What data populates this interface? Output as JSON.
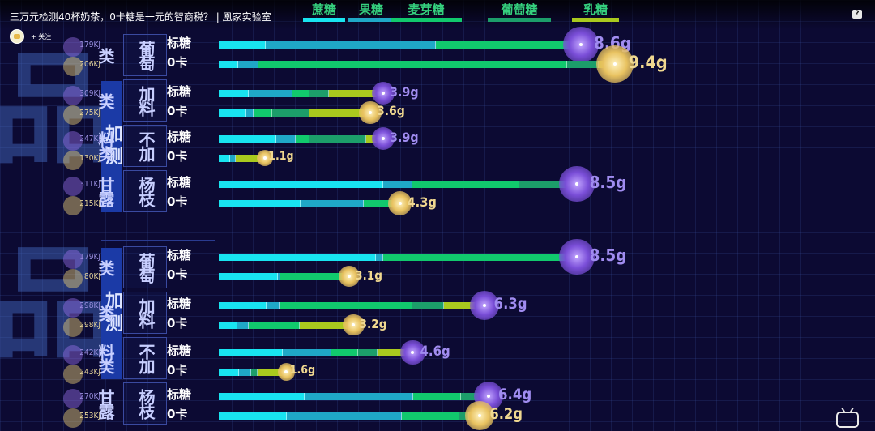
{
  "video": {
    "title": "三万元检测40杯奶茶，0卡糖是一元的智商税？ | 凰家实验室",
    "uploader_follow": "+ 关注",
    "help_icon": "?"
  },
  "colors": {
    "sucrose": "#18e4f0",
    "fructose": "#1fa8c7",
    "maltose": "#11c96d",
    "glucose": "#1c9e6a",
    "lactose": "#a9c91e",
    "background": "#0c0a33"
  },
  "legend": [
    {
      "label": "蔗糖",
      "color": "#18e4f0"
    },
    {
      "label": "果糖",
      "color": "#1fa8c7"
    },
    {
      "label": "麦芽糖",
      "color": "#11c96d"
    },
    {
      "label": "葡萄糖",
      "color": "#1c9e6a"
    },
    {
      "label": "乳糖",
      "color": "#a9c91e"
    }
  ],
  "sections": [
    {
      "method": "",
      "categories": [
        "葡萄类",
        "加料类",
        "不加料类",
        "杨枝甘露"
      ]
    },
    {
      "method": "加测",
      "categories": [
        "葡萄类",
        "加料类",
        "不加料类",
        "杨枝甘露"
      ]
    }
  ],
  "rows": [
    {
      "type": "标糖",
      "kj": "179KJ",
      "value": "8.6g",
      "segments": [
        0.13,
        0.47,
        0.38,
        0.02,
        0
      ]
    },
    {
      "type": "0卡",
      "kj": "206KJ",
      "value": "9.4g",
      "segments": [
        0.05,
        0.05,
        0.78,
        0.08,
        0.04
      ]
    },
    {
      "type": "标糖",
      "kj": "309KJ",
      "value": "3.9g",
      "segments": [
        0.18,
        0.27,
        0.1,
        0.12,
        0.33
      ]
    },
    {
      "type": "0卡",
      "kj": "275KJ",
      "value": "3.6g",
      "segments": [
        0.18,
        0.05,
        0.12,
        0.25,
        0.4
      ]
    },
    {
      "type": "标糖",
      "kj": "247KJ",
      "value": "3.9g",
      "segments": [
        0.35,
        0.12,
        0.08,
        0.35,
        0.1
      ]
    },
    {
      "type": "0卡",
      "kj": "130KJ",
      "value": "1.1g",
      "segments": [
        0.25,
        0.12,
        0,
        0,
        0.63
      ]
    },
    {
      "type": "标糖",
      "kj": "311KJ",
      "value": "8.5g",
      "segments": [
        0.46,
        0.08,
        0.3,
        0.16,
        0
      ]
    },
    {
      "type": "0卡",
      "kj": "215KJ",
      "value": "4.3g",
      "segments": [
        0.45,
        0.35,
        0.2,
        0,
        0
      ]
    },
    {
      "type": "标糖",
      "kj": "179KJ",
      "value": "8.5g",
      "segments": [
        0.44,
        0.02,
        0.54,
        0,
        0
      ]
    },
    {
      "type": "0卡",
      "kj": "80KJ",
      "value": "3.1g",
      "segments": [
        0.45,
        0.02,
        0.53,
        0,
        0
      ]
    },
    {
      "type": "标糖",
      "kj": "298KJ",
      "value": "6.3g",
      "segments": [
        0.18,
        0.05,
        0.5,
        0.12,
        0.15
      ]
    },
    {
      "type": "0卡",
      "kj": "298KJ",
      "value": "3.2g",
      "segments": [
        0.14,
        0.08,
        0.38,
        0,
        0.4
      ]
    },
    {
      "type": "标糖",
      "kj": "242KJ",
      "value": "4.6g",
      "segments": [
        0.33,
        0.25,
        0.14,
        0.1,
        0.18
      ]
    },
    {
      "type": "0卡",
      "kj": "243KJ",
      "value": "1.6g",
      "segments": [
        0.3,
        0.18,
        0,
        0.1,
        0.42
      ]
    },
    {
      "type": "标糖",
      "kj": "270KJ",
      "value": "6.4g",
      "segments": [
        0.32,
        0.4,
        0.18,
        0.08,
        0.02
      ]
    },
    {
      "type": "0卡",
      "kj": "253KJ",
      "value": "6.2g",
      "segments": [
        0.26,
        0.44,
        0.22,
        0.04,
        0.04
      ]
    }
  ],
  "chart_data": {
    "type": "bar",
    "series_names": [
      "蔗糖",
      "果糖",
      "麦芽糖",
      "葡萄糖",
      "乳糖"
    ],
    "values_g": [
      8.6,
      9.4,
      3.9,
      3.6,
      3.9,
      1.1,
      8.5,
      4.3,
      8.5,
      3.1,
      6.3,
      3.2,
      4.6,
      1.6,
      6.4,
      6.2
    ]
  }
}
